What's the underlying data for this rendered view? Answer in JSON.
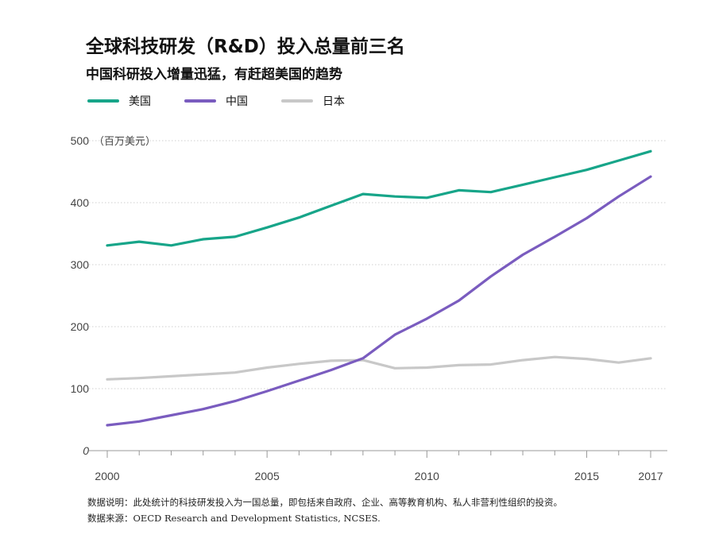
{
  "title": "全球科技研发（R&D）投入总量前三名",
  "subtitle": "中国科研投入增量迅猛，有赶超美国的趋势",
  "notes": {
    "line1": "数据说明：此处统计的科技研发投入为一国总量，即包括来自政府、企业、高等教育机构、私人非营利性组织的投资。",
    "line2": "数据来源：OECD Research and Development Statistics, NCSES."
  },
  "chart_data": {
    "type": "line",
    "unit_label": "（百万美元）",
    "x": [
      2000,
      2001,
      2002,
      2003,
      2004,
      2005,
      2006,
      2007,
      2008,
      2009,
      2010,
      2011,
      2012,
      2013,
      2014,
      2015,
      2016,
      2017
    ],
    "x_tick_labels": [
      "2000",
      "2005",
      "2010",
      "2015",
      "2017"
    ],
    "y_tick_labels": [
      "0",
      "100",
      "200",
      "300",
      "400",
      "500"
    ],
    "xlim": [
      2000,
      2017
    ],
    "ylim": [
      0,
      500
    ],
    "grid": true,
    "legend_position": "top-left",
    "series": [
      {
        "name": "美国",
        "color": "#17a589",
        "values": [
          331,
          337,
          331,
          341,
          345,
          360,
          376,
          395,
          414,
          410,
          408,
          420,
          417,
          429,
          441,
          453,
          468,
          483
        ]
      },
      {
        "name": "中国",
        "color": "#7a5cbf",
        "values": [
          41,
          47,
          57,
          67,
          80,
          96,
          113,
          130,
          149,
          187,
          213,
          242,
          281,
          316,
          345,
          375,
          410,
          442
        ]
      },
      {
        "name": "日本",
        "color": "#c8c8c8",
        "values": [
          115,
          117,
          120,
          123,
          126,
          134,
          140,
          145,
          146,
          133,
          134,
          138,
          139,
          146,
          151,
          148,
          142,
          149
        ]
      }
    ]
  }
}
